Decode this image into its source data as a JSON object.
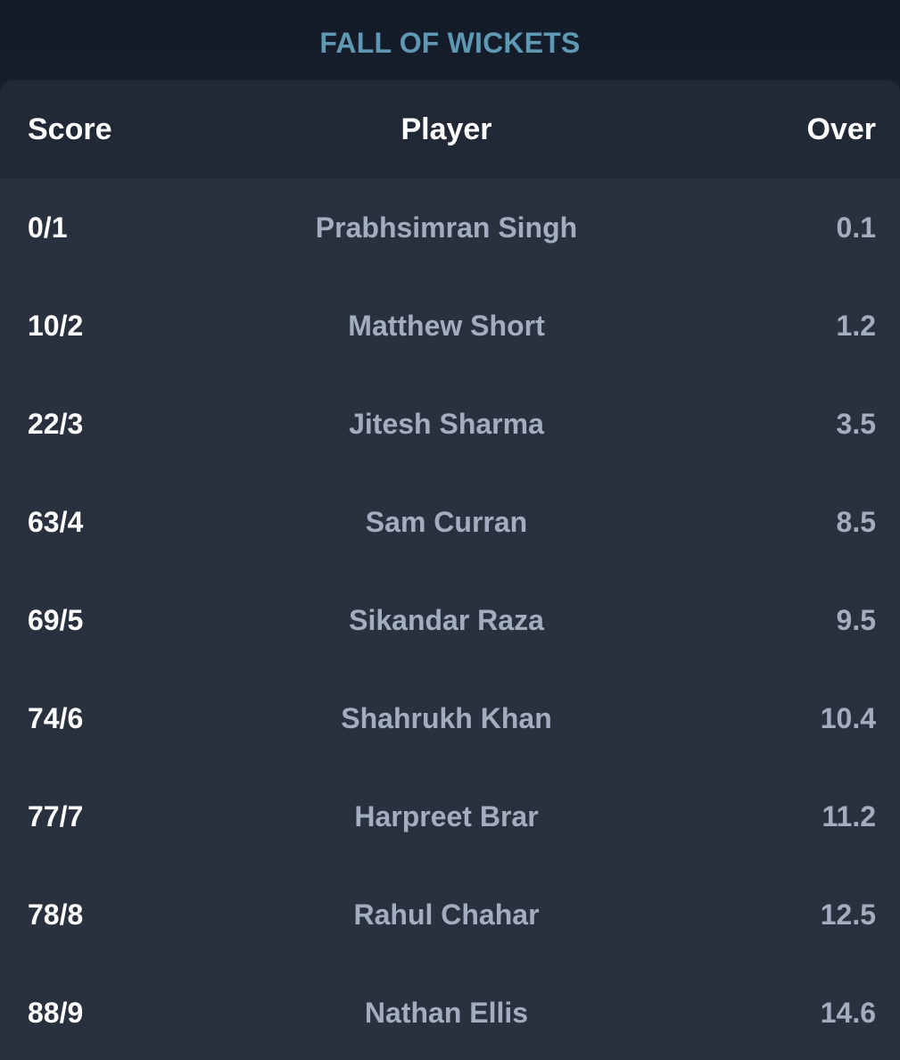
{
  "title": "FALL OF WICKETS",
  "columns": {
    "score": "Score",
    "player": "Player",
    "over": "Over"
  },
  "rows": [
    {
      "score": "0/1",
      "player": "Prabhsimran Singh",
      "over": "0.1"
    },
    {
      "score": "10/2",
      "player": "Matthew Short",
      "over": "1.2"
    },
    {
      "score": "22/3",
      "player": "Jitesh Sharma",
      "over": "3.5"
    },
    {
      "score": "63/4",
      "player": "Sam Curran",
      "over": "8.5"
    },
    {
      "score": "69/5",
      "player": "Sikandar Raza",
      "over": "9.5"
    },
    {
      "score": "74/6",
      "player": "Shahrukh Khan",
      "over": "10.4"
    },
    {
      "score": "77/7",
      "player": "Harpreet Brar",
      "over": "11.2"
    },
    {
      "score": "78/8",
      "player": "Rahul Chahar",
      "over": "12.5"
    },
    {
      "score": "88/9",
      "player": "Nathan Ellis",
      "over": "14.6"
    }
  ],
  "colors": {
    "title": "#5f98b3",
    "background": "#161e2c",
    "card": "#2a313e",
    "header": "#222936",
    "primary_text": "#ffffff",
    "secondary_text": "#a2adbf"
  }
}
